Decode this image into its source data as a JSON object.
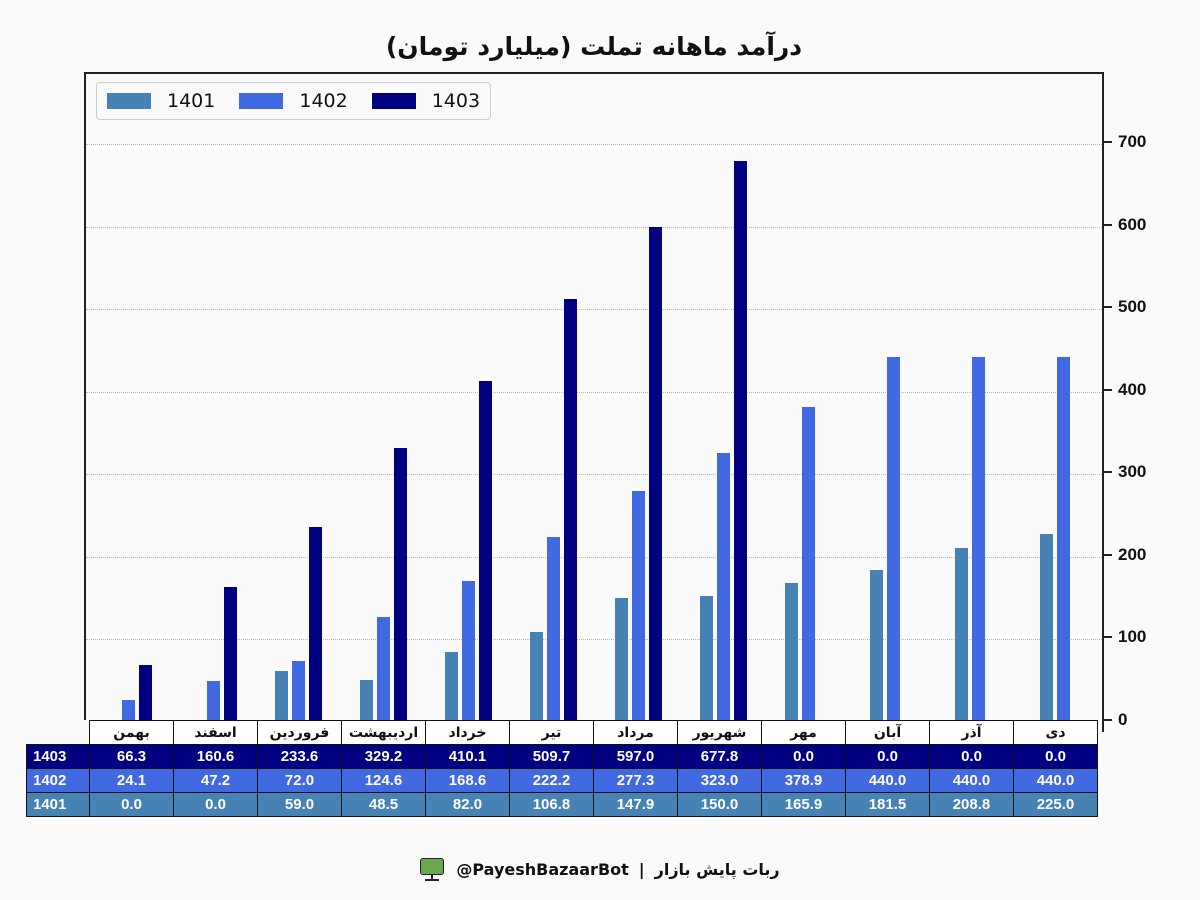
{
  "title": "درآمد ماهانه تملت (میلیارد تومان)",
  "legend": [
    {
      "label": "1401",
      "color": "#4682b4"
    },
    {
      "label": "1402",
      "color": "#4169e1"
    },
    {
      "label": "1403",
      "color": "#000080"
    }
  ],
  "yaxis": {
    "ticks": [
      "0",
      "100",
      "200",
      "300",
      "400",
      "500",
      "600",
      "700"
    ]
  },
  "table": {
    "months": [
      "بهمن",
      "اسفند",
      "فروردین",
      "اردیبهشت",
      "خرداد",
      "تیر",
      "مرداد",
      "شهریور",
      "مهر",
      "آبان",
      "آذر",
      "دی"
    ],
    "rows": [
      {
        "label": "1403",
        "color": "#000080",
        "values": [
          "66.3",
          "160.6",
          "233.6",
          "329.2",
          "410.1",
          "509.7",
          "597.0",
          "677.8",
          "0.0",
          "0.0",
          "0.0",
          "0.0"
        ]
      },
      {
        "label": "1402",
        "color": "#4169e1",
        "values": [
          "24.1",
          "47.2",
          "72.0",
          "124.6",
          "168.6",
          "222.2",
          "277.3",
          "323.0",
          "378.9",
          "440.0",
          "440.0",
          "440.0"
        ]
      },
      {
        "label": "1401",
        "color": "#4682b4",
        "values": [
          "0.0",
          "0.0",
          "59.0",
          "48.5",
          "82.0",
          "106.8",
          "147.9",
          "150.0",
          "165.9",
          "181.5",
          "208.8",
          "225.0"
        ]
      }
    ]
  },
  "footer": {
    "handle": "@PayeshBazaarBot",
    "separator": "|",
    "bot_name": "ربات پایش بازار",
    "icon": "monitor-bot-icon"
  },
  "chart_data": {
    "type": "bar",
    "title": "درآمد ماهانه تملت (میلیارد تومان)",
    "xlabel": "",
    "ylabel": "",
    "ylim": [
      0,
      785
    ],
    "yticks": [
      0,
      100,
      200,
      300,
      400,
      500,
      600,
      700
    ],
    "grid": "horizontal dotted",
    "legend_position": "upper left",
    "yaxis_position": "right",
    "categories": [
      "بهمن",
      "اسفند",
      "فروردین",
      "اردیبهشت",
      "خرداد",
      "تیر",
      "مرداد",
      "شهریور",
      "مهر",
      "آبان",
      "آذر",
      "دی"
    ],
    "series": [
      {
        "name": "1401",
        "color": "#4682b4",
        "values": [
          0.0,
          0.0,
          59.0,
          48.5,
          82.0,
          106.8,
          147.9,
          150.0,
          165.9,
          181.5,
          208.8,
          225.0
        ]
      },
      {
        "name": "1402",
        "color": "#4169e1",
        "values": [
          24.1,
          47.2,
          72.0,
          124.6,
          168.6,
          222.2,
          277.3,
          323.0,
          378.9,
          440.0,
          440.0,
          440.0
        ]
      },
      {
        "name": "1403",
        "color": "#000080",
        "values": [
          66.3,
          160.6,
          233.6,
          329.2,
          410.1,
          509.7,
          597.0,
          677.8,
          0.0,
          0.0,
          0.0,
          0.0
        ]
      }
    ]
  }
}
